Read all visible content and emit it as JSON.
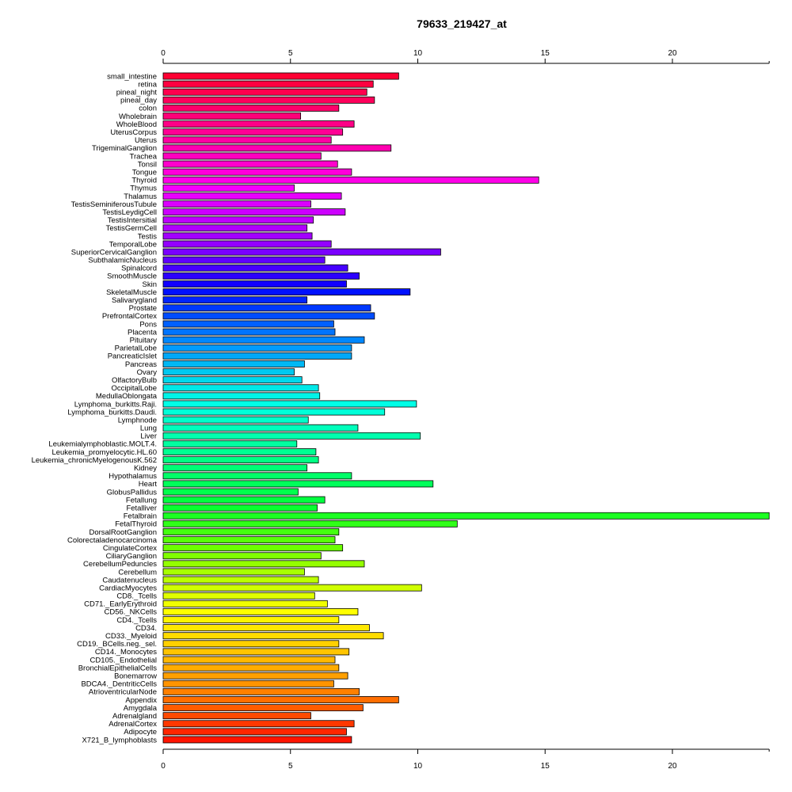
{
  "chart_data": {
    "type": "bar",
    "orientation": "horizontal",
    "title": "79633_219427_at",
    "xlabel": "",
    "ylabel": "",
    "xlim": [
      0,
      23.8
    ],
    "xticks": [
      0,
      5,
      10,
      15,
      20
    ],
    "grid": false,
    "categories": [
      "small_intestine",
      "retina",
      "pineal_night",
      "pineal_day",
      "colon",
      "Wholebrain",
      "WholeBlood",
      "UterusCorpus",
      "Uterus",
      "TrigeminalGanglion",
      "Trachea",
      "Tonsil",
      "Tongue",
      "Thyroid",
      "Thymus",
      "Thalamus",
      "TestisSeminiferousTubule",
      "TestisLeydigCell",
      "TestisIntersitial",
      "TestisGermCell",
      "Testis",
      "TemporalLobe",
      "SuperiorCervicalGanglion",
      "SubthalamicNucleus",
      "Spinalcord",
      "SmoothMuscle",
      "Skin",
      "SkeletalMuscle",
      "Salivarygland",
      "Prostate",
      "PrefrontalCortex",
      "Pons",
      "Placenta",
      "Pituitary",
      "ParietalLobe",
      "PancreaticIslet",
      "Pancreas",
      "Ovary",
      "OlfactoryBulb",
      "OccipitalLobe",
      "MedullaOblongata",
      "Lymphoma_burkitts.Raji.",
      "Lymphoma_burkitts.Daudi.",
      "Lymphnode",
      "Lung",
      "Liver",
      "Leukemialymphoblastic.MOLT.4.",
      "Leukemia_promyelocytic.HL.60",
      "Leukemia_chronicMyelogenousK.562",
      "Kidney",
      "Hypothalamus",
      "Heart",
      "GlobusPallidus",
      "Fetallung",
      "Fetalliver",
      "Fetalbrain",
      "FetalThyroid",
      "DorsalRootGanglion",
      "Colorectaladenocarcinoma",
      "CingulateCortex",
      "CiliaryGanglion",
      "CerebellumPeduncles",
      "Cerebellum",
      "Caudatenucleus",
      "CardiacMyocytes",
      "CD8._Tcells",
      "CD71._EarlyErythroid",
      "CD56._NKCells",
      "CD4._Tcells",
      "CD34.",
      "CD33._Myeloid",
      "CD19._BCells.neg._sel.",
      "CD14._Monocytes",
      "CD105._Endothelial",
      "BronchialEpithelialCells",
      "Bonemarrow",
      "BDCA4._DentriticCells",
      "AtrioventricularNode",
      "Appendix",
      "Amygdala",
      "Adrenalgland",
      "AdrenalCortex",
      "Adipocyte",
      "X721_B_lymphoblasts"
    ],
    "values": [
      9.25,
      8.25,
      8.0,
      8.3,
      6.9,
      5.4,
      7.5,
      7.05,
      6.6,
      8.95,
      6.2,
      6.85,
      7.4,
      14.75,
      5.15,
      7.0,
      5.8,
      7.15,
      5.9,
      5.65,
      5.85,
      6.6,
      10.9,
      6.35,
      7.25,
      7.7,
      7.2,
      9.7,
      5.65,
      8.15,
      8.3,
      6.7,
      6.75,
      7.9,
      7.4,
      7.4,
      5.55,
      5.15,
      5.45,
      6.1,
      6.15,
      9.95,
      8.7,
      5.7,
      7.65,
      10.1,
      5.25,
      6.0,
      6.1,
      5.65,
      7.4,
      10.6,
      5.3,
      6.35,
      6.05,
      23.8,
      11.55,
      6.9,
      6.75,
      7.05,
      6.2,
      7.9,
      5.55,
      6.1,
      10.15,
      5.95,
      6.45,
      7.65,
      6.9,
      8.1,
      8.65,
      6.9,
      7.3,
      6.75,
      6.9,
      7.25,
      6.7,
      7.7,
      9.25,
      7.85,
      5.8,
      7.5,
      7.2,
      7.4
    ],
    "colors": [
      "#ff0033",
      "#ff0040",
      "#ff004e",
      "#ff005c",
      "#ff006a",
      "#ff0078",
      "#ff0086",
      "#ff0094",
      "#ff00a2",
      "#ff00b0",
      "#ff00be",
      "#ff00cc",
      "#ff00da",
      "#ff00e8",
      "#f600ff",
      "#e800ff",
      "#da00ff",
      "#cc00ff",
      "#be00ff",
      "#b000ff",
      "#a200ff",
      "#9400ff",
      "#7a00ff",
      "#6000ff",
      "#4600ff",
      "#2c00ff",
      "#1200ff",
      "#0010ff",
      "#0024ff",
      "#0038ff",
      "#004cff",
      "#0060ff",
      "#0074ff",
      "#0088ff",
      "#009cff",
      "#00a8f8",
      "#00b8f4",
      "#00c8f0",
      "#00d8ec",
      "#00e8e8",
      "#00f4e8",
      "#00ffe6",
      "#00ffd8",
      "#00ffca",
      "#00ffbc",
      "#00ffae",
      "#00ffa0",
      "#00ff92",
      "#00ff84",
      "#00ff76",
      "#00ff68",
      "#00ff5a",
      "#00ff4c",
      "#00ff3e",
      "#08ff30",
      "#1cff22",
      "#30ff18",
      "#44ff10",
      "#58ff08",
      "#6cff00",
      "#80ff00",
      "#94ff00",
      "#a8ff00",
      "#bcff00",
      "#d0ff00",
      "#e0ff00",
      "#f0ff00",
      "#ffff00",
      "#fff400",
      "#ffe800",
      "#ffdc00",
      "#ffd000",
      "#ffc400",
      "#ffb800",
      "#ffac00",
      "#ffa000",
      "#ff9400",
      "#ff8000",
      "#ff6e00",
      "#ff5c00",
      "#ff4a00",
      "#ff3800",
      "#ff2600",
      "#ff1400"
    ]
  }
}
